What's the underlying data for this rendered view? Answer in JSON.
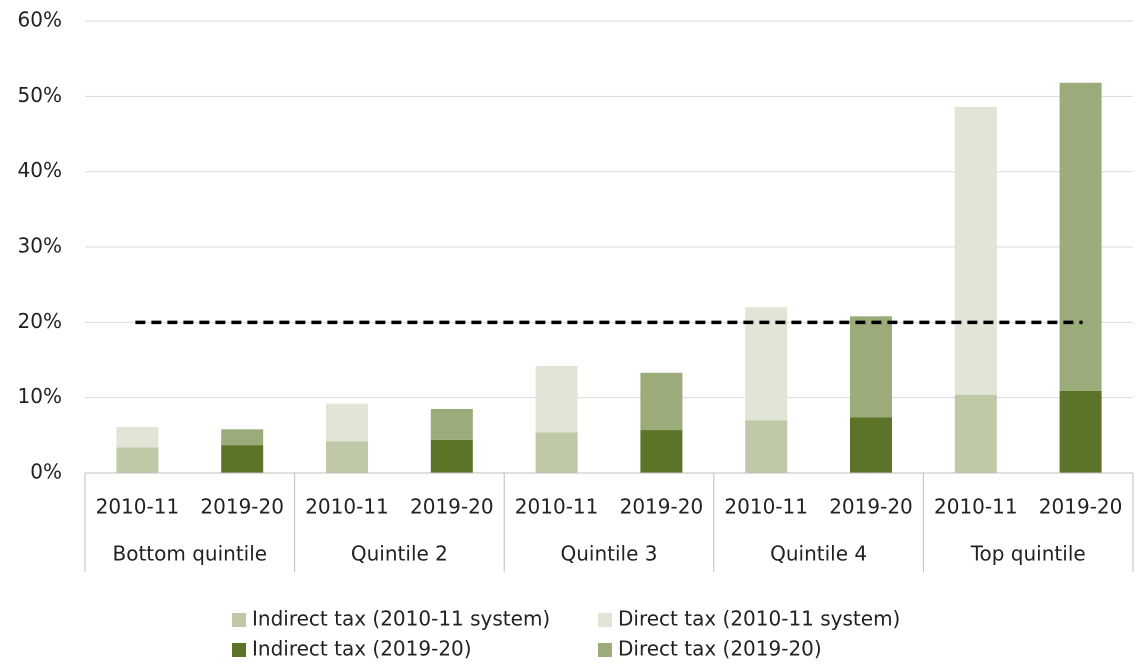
{
  "chart_data": {
    "type": "stacked_bar",
    "categories": [
      "2010-11",
      "2019-20",
      "2010-11",
      "2019-20",
      "2010-11",
      "2019-20",
      "2010-11",
      "2019-20",
      "2010-11",
      "2019-20"
    ],
    "groups": [
      "Bottom quintile",
      "Quintile 2",
      "Quintile 3",
      "Quintile 4",
      "Top quintile"
    ],
    "series": [
      {
        "name": "Indirect tax (2010-11 system)",
        "color": "#bfc8a7",
        "values": [
          3.4,
          null,
          4.2,
          null,
          5.4,
          null,
          7.0,
          null,
          10.4,
          null
        ]
      },
      {
        "name": "Direct tax (2010-11 system)",
        "color": "#e0e5d5",
        "values": [
          2.7,
          null,
          5.0,
          null,
          8.8,
          null,
          15.0,
          null,
          38.2,
          null
        ]
      },
      {
        "name": "Indirect tax (2019-20)",
        "color": "#5b7428",
        "values": [
          null,
          3.7,
          null,
          4.4,
          null,
          5.7,
          null,
          7.4,
          null,
          10.9
        ]
      },
      {
        "name": "Direct tax (2019-20)",
        "color": "#9bab79",
        "values": [
          null,
          2.1,
          null,
          4.1,
          null,
          7.6,
          null,
          13.4,
          null,
          40.9
        ]
      }
    ],
    "reference_line": 20,
    "ylim": [
      0,
      60
    ],
    "yticks": [
      {
        "value": 0,
        "label": "0%"
      },
      {
        "value": 10,
        "label": "10%"
      },
      {
        "value": 20,
        "label": "20%"
      },
      {
        "value": 30,
        "label": "30%"
      },
      {
        "value": 40,
        "label": "40%"
      },
      {
        "value": 50,
        "label": "50%"
      },
      {
        "value": 60,
        "label": "60%"
      }
    ],
    "grid": true
  }
}
